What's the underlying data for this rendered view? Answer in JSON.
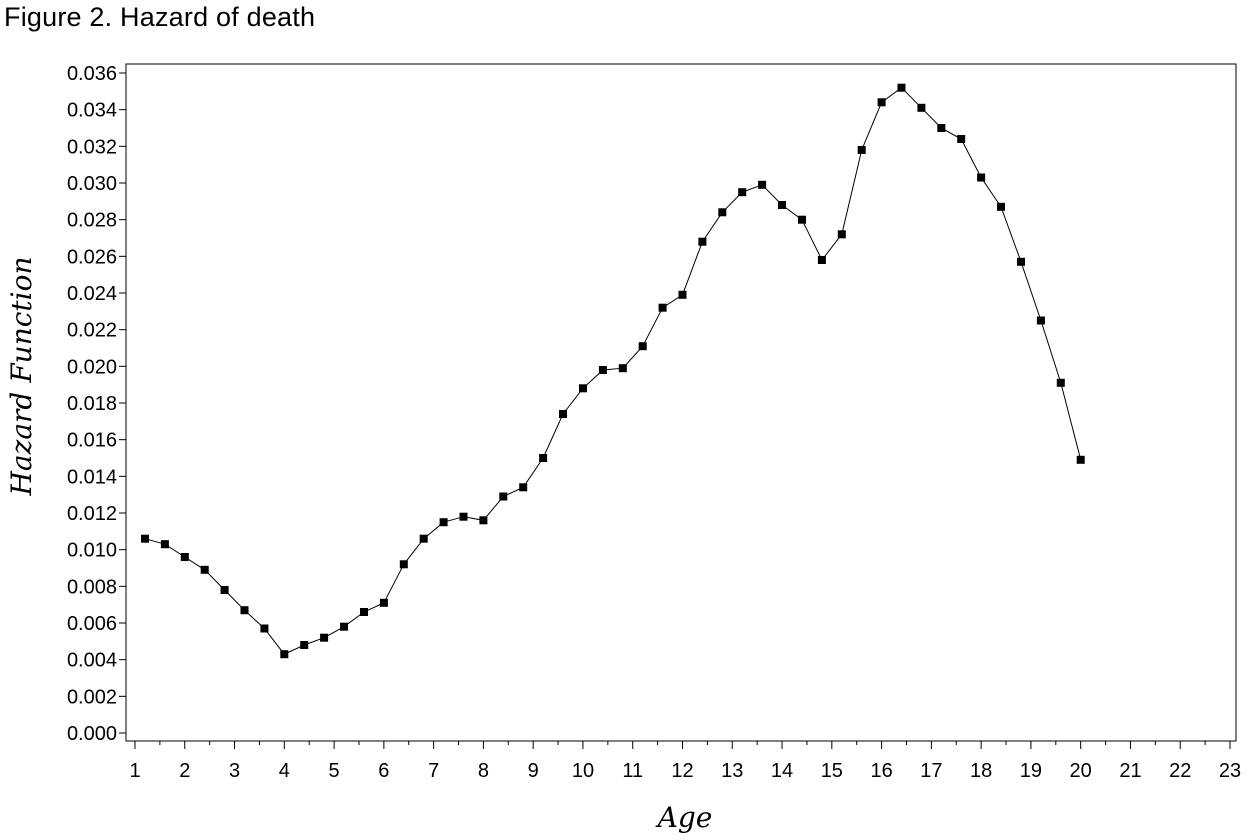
{
  "figure_title": "Figure 2. Hazard of death",
  "chart_data": {
    "type": "line",
    "title": "Figure 2. Hazard of death",
    "xlabel": "Age",
    "ylabel": "Hazard Function",
    "xlim": [
      1,
      23
    ],
    "ylim": [
      0.0,
      0.036
    ],
    "x_ticks": [
      "1",
      "2",
      "3",
      "4",
      "5",
      "6",
      "7",
      "8",
      "9",
      "10",
      "11",
      "12",
      "13",
      "14",
      "15",
      "16",
      "17",
      "18",
      "19",
      "20",
      "21",
      "22",
      "23"
    ],
    "y_ticks": [
      "0.000",
      "0.002",
      "0.004",
      "0.006",
      "0.008",
      "0.010",
      "0.012",
      "0.014",
      "0.016",
      "0.018",
      "0.020",
      "0.022",
      "0.024",
      "0.026",
      "0.028",
      "0.030",
      "0.032",
      "0.034",
      "0.036"
    ],
    "grid": false,
    "marker": "square",
    "line_color": "#000000",
    "series": [
      {
        "x": [
          1.2,
          1.6,
          2.0,
          2.4,
          2.8,
          3.2,
          3.6,
          4.0,
          4.4,
          4.8,
          5.2,
          5.6,
          6.0,
          6.4,
          6.8,
          7.2,
          7.6,
          8.0,
          8.4,
          8.8,
          9.2,
          9.6,
          10.0,
          10.4,
          10.8,
          11.2,
          11.6,
          12.0,
          12.4,
          12.8,
          13.2,
          13.6,
          14.0,
          14.4,
          14.8,
          15.2,
          15.6,
          16.0,
          16.4,
          16.8,
          17.2,
          17.6,
          18.0,
          18.4,
          18.8,
          19.2,
          19.6,
          20.0
        ],
        "values": [
          0.0106,
          0.0103,
          0.0096,
          0.0089,
          0.0078,
          0.0067,
          0.0057,
          0.0043,
          0.0048,
          0.0052,
          0.0058,
          0.0066,
          0.0071,
          0.0092,
          0.0106,
          0.0115,
          0.0118,
          0.0116,
          0.0129,
          0.0134,
          0.015,
          0.0174,
          0.0188,
          0.0198,
          0.0199,
          0.0211,
          0.0232,
          0.0239,
          0.0268,
          0.0284,
          0.0295,
          0.0299,
          0.0288,
          0.028,
          0.0258,
          0.0272,
          0.0318,
          0.0344,
          0.0352,
          0.0341,
          0.033,
          0.0324,
          0.0303,
          0.0287,
          0.0257,
          0.0225,
          0.0191,
          0.0149
        ]
      }
    ]
  }
}
